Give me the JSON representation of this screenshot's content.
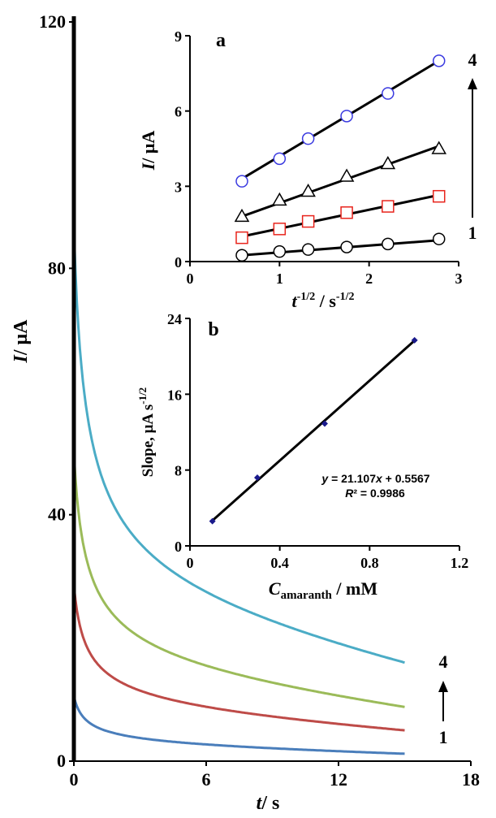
{
  "chart_data": [
    {
      "id": "main",
      "type": "line",
      "xlabel": {
        "main": "t",
        "rest": "/ s"
      },
      "ylabel": {
        "main": "I",
        "rest": "/ μA"
      },
      "xlim": [
        0,
        18
      ],
      "ylim": [
        0,
        120
      ],
      "xticks": [
        0,
        6,
        12,
        18
      ],
      "yticks": [
        0,
        40,
        80,
        120
      ],
      "series": [
        {
          "label": "1",
          "color": "#4a7ebb",
          "y0": 10.5,
          "y_end": 1.2,
          "t_end": 15
        },
        {
          "label": "2",
          "color": "#be4b48",
          "y0": 28.5,
          "y_end": 5.0,
          "t_end": 15
        },
        {
          "label": "3",
          "color": "#9bbb59",
          "y0": 50.0,
          "y_end": 8.8,
          "t_end": 15
        },
        {
          "label": "4",
          "color": "#4bacc6",
          "y0": 86.5,
          "y_end": 16.0,
          "t_end": 15
        }
      ],
      "order_labels": {
        "low": "1",
        "high": "4"
      }
    },
    {
      "id": "inset-a",
      "type": "scatter",
      "panel_label": "a",
      "xlabel": {
        "main": "t",
        "sup": "-1/2",
        "rest": " / s",
        "sup2": "-1/2"
      },
      "ylabel": {
        "main": "I",
        "rest": "/ μA"
      },
      "xlim": [
        0,
        3
      ],
      "ylim": [
        0,
        9
      ],
      "xticks": [
        0,
        1,
        2,
        3
      ],
      "yticks": [
        0,
        3,
        6,
        9
      ],
      "x": [
        0.58,
        1.0,
        1.32,
        1.75,
        2.21,
        2.78
      ],
      "series": [
        {
          "label": "1",
          "marker": "circle",
          "color": "#000000",
          "values": [
            0.25,
            0.4,
            0.48,
            0.58,
            0.7,
            0.9
          ]
        },
        {
          "label": "2",
          "marker": "square",
          "color": "#e8241c",
          "values": [
            0.95,
            1.3,
            1.6,
            1.95,
            2.2,
            2.6
          ]
        },
        {
          "label": "3",
          "marker": "triangle",
          "color": "#000000",
          "values": [
            1.8,
            2.45,
            2.8,
            3.4,
            3.9,
            4.5
          ]
        },
        {
          "label": "4",
          "marker": "circle",
          "color": "#3a3ae0",
          "values": [
            3.2,
            4.1,
            4.9,
            5.8,
            6.7,
            8.0
          ]
        }
      ],
      "fits": [
        {
          "x0": 0.58,
          "y0": 0.25,
          "x1": 2.78,
          "y1": 0.85
        },
        {
          "x0": 0.58,
          "y0": 1.0,
          "x1": 2.78,
          "y1": 2.65
        },
        {
          "x0": 0.58,
          "y0": 1.8,
          "x1": 2.78,
          "y1": 4.6
        },
        {
          "x0": 0.58,
          "y0": 3.3,
          "x1": 2.78,
          "y1": 8.0
        }
      ],
      "order_labels": {
        "low": "1",
        "high": "4"
      }
    },
    {
      "id": "inset-b",
      "type": "scatter",
      "panel_label": "b",
      "xlabel": {
        "main": "C",
        "sub": "amaranth",
        "rest": " / mM"
      },
      "ylabel": {
        "main": "Slope, μA s",
        "sup": "-1/2"
      },
      "xlim": [
        0,
        1.2
      ],
      "ylim": [
        0,
        24
      ],
      "xticks": [
        "0",
        "0.4",
        "0.8",
        "1.2"
      ],
      "yticks": [
        "0",
        "8",
        "16",
        "24"
      ],
      "x": [
        0.1,
        0.3,
        0.6,
        1.0
      ],
      "values": [
        2.6,
        7.2,
        12.9,
        21.7
      ],
      "fit": {
        "slope": 21.107,
        "intercept": 0.5567,
        "x0": 0.1,
        "x1": 1.0
      },
      "equation": {
        "y": "y",
        "rest": " = 21.107",
        "x": "x",
        "rest2": " + 0.5567"
      },
      "r2": {
        "r": "R",
        "rest": "² = 0.9986"
      },
      "point_color": "#1a1a8c"
    }
  ]
}
